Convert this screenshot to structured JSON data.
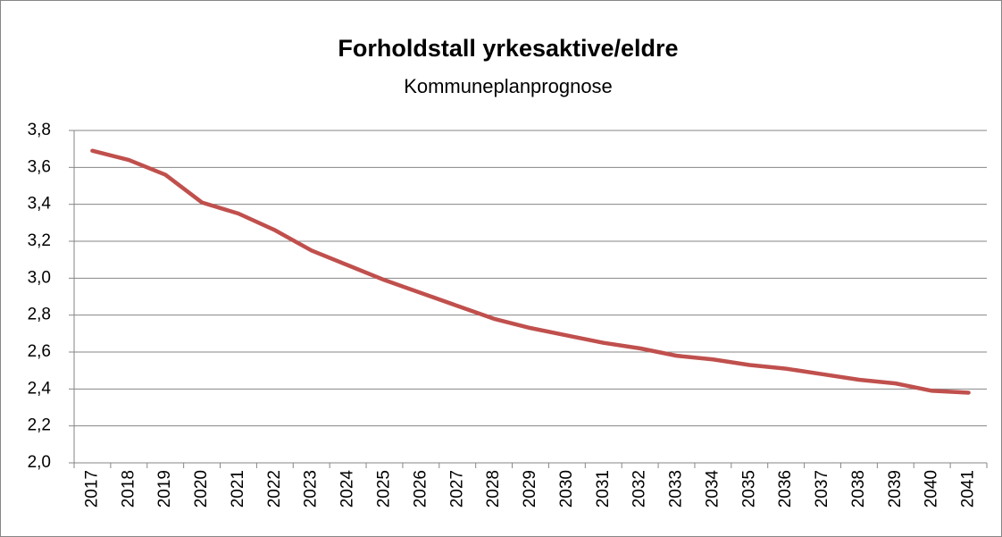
{
  "chart_data": {
    "type": "line",
    "title": "Forholdstall yrkesaktive/eldre",
    "subtitle": "Kommuneplanprognose",
    "categories": [
      "2017",
      "2018",
      "2019",
      "2020",
      "2021",
      "2022",
      "2023",
      "2024",
      "2025",
      "2026",
      "2027",
      "2028",
      "2029",
      "2030",
      "2031",
      "2032",
      "2033",
      "2034",
      "2035",
      "2036",
      "2037",
      "2038",
      "2039",
      "2040",
      "2041"
    ],
    "series": [
      {
        "name": "Forholdstall",
        "color": "#c0504d",
        "values": [
          3.69,
          3.64,
          3.56,
          3.41,
          3.35,
          3.26,
          3.15,
          3.07,
          2.99,
          2.92,
          2.85,
          2.78,
          2.73,
          2.69,
          2.65,
          2.62,
          2.58,
          2.56,
          2.53,
          2.51,
          2.48,
          2.45,
          2.43,
          2.39,
          2.38
        ]
      }
    ],
    "ylim": [
      2.0,
      3.8
    ],
    "yticks": [
      {
        "value": 2.0,
        "label": "2,0"
      },
      {
        "value": 2.2,
        "label": "2,2"
      },
      {
        "value": 2.4,
        "label": "2,4"
      },
      {
        "value": 2.6,
        "label": "2,6"
      },
      {
        "value": 2.8,
        "label": "2,8"
      },
      {
        "value": 3.0,
        "label": "3,0"
      },
      {
        "value": 3.2,
        "label": "3,2"
      },
      {
        "value": 3.4,
        "label": "3,4"
      },
      {
        "value": 3.6,
        "label": "3,6"
      },
      {
        "value": 3.8,
        "label": "3,8"
      }
    ],
    "grid": true
  }
}
